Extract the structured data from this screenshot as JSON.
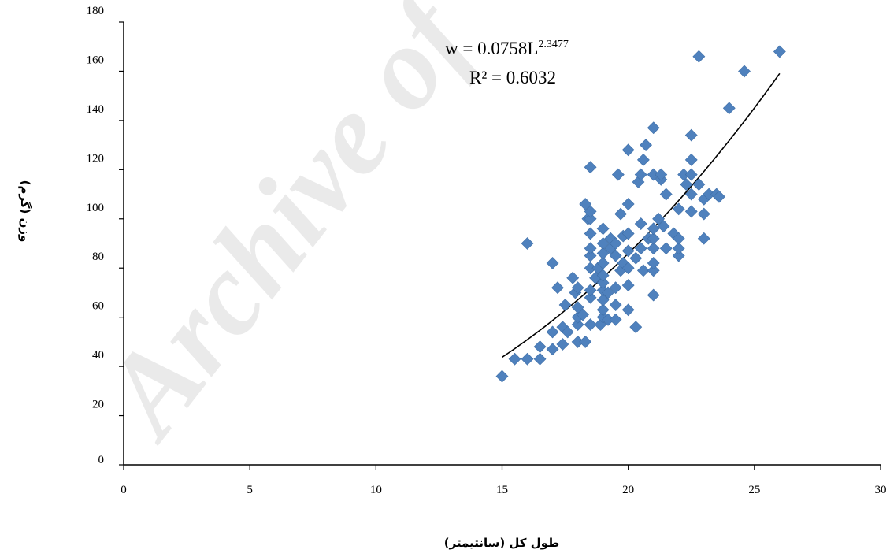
{
  "watermark": "Archive of",
  "chart_data": {
    "type": "scatter",
    "title": "",
    "xlabel": "طول کل (سانتیمتر)",
    "ylabel": "وزن (گرم)",
    "xlim": [
      0,
      30
    ],
    "ylim": [
      0,
      180
    ],
    "xticks": [
      0,
      5,
      10,
      15,
      20,
      25,
      30
    ],
    "yticks": [
      0,
      20,
      40,
      60,
      80,
      100,
      120,
      140,
      160,
      180
    ],
    "grid": false,
    "marker_color": "#4f81bd",
    "trendline_color": "#000000",
    "trendline": {
      "type": "power",
      "a": 0.0758,
      "b": 2.3477,
      "x_range": [
        15,
        26
      ],
      "equation_main": "w = 0.0758L",
      "equation_exponent": "2.3477",
      "r2_label": "R² = 0.6032"
    },
    "points": [
      [
        15,
        36
      ],
      [
        15.5,
        43
      ],
      [
        16,
        43
      ],
      [
        16,
        90
      ],
      [
        16.5,
        43
      ],
      [
        16.5,
        48
      ],
      [
        17,
        47
      ],
      [
        17,
        54
      ],
      [
        17,
        82
      ],
      [
        17.2,
        72
      ],
      [
        17.4,
        49
      ],
      [
        17.4,
        56
      ],
      [
        17.5,
        65
      ],
      [
        17.6,
        54
      ],
      [
        17.8,
        76
      ],
      [
        17.9,
        70
      ],
      [
        18,
        50
      ],
      [
        18,
        57
      ],
      [
        18,
        60
      ],
      [
        18,
        64
      ],
      [
        18,
        72
      ],
      [
        18.2,
        61
      ],
      [
        18.3,
        50
      ],
      [
        18.3,
        106
      ],
      [
        18.4,
        100
      ],
      [
        18.5,
        57
      ],
      [
        18.5,
        68
      ],
      [
        18.5,
        71
      ],
      [
        18.5,
        80
      ],
      [
        18.5,
        85
      ],
      [
        18.5,
        88
      ],
      [
        18.5,
        94
      ],
      [
        18.5,
        100
      ],
      [
        18.5,
        103
      ],
      [
        18.5,
        121
      ],
      [
        18.7,
        76
      ],
      [
        18.8,
        80
      ],
      [
        18.9,
        57
      ],
      [
        19,
        60
      ],
      [
        19,
        63
      ],
      [
        19,
        67
      ],
      [
        19,
        71
      ],
      [
        19,
        74
      ],
      [
        19,
        77
      ],
      [
        19,
        82
      ],
      [
        19,
        86
      ],
      [
        19,
        90
      ],
      [
        19,
        96
      ],
      [
        19.2,
        59
      ],
      [
        19.2,
        70
      ],
      [
        19.3,
        88
      ],
      [
        19.3,
        92
      ],
      [
        19.5,
        59
      ],
      [
        19.5,
        65
      ],
      [
        19.5,
        72
      ],
      [
        19.5,
        85
      ],
      [
        19.5,
        90
      ],
      [
        19.6,
        118
      ],
      [
        19.7,
        79
      ],
      [
        19.7,
        102
      ],
      [
        19.8,
        93
      ],
      [
        19.8,
        82
      ],
      [
        20,
        63
      ],
      [
        20,
        73
      ],
      [
        20,
        80
      ],
      [
        20,
        87
      ],
      [
        20,
        94
      ],
      [
        20,
        106
      ],
      [
        20,
        128
      ],
      [
        20.3,
        56
      ],
      [
        20.3,
        84
      ],
      [
        20.4,
        115
      ],
      [
        20.5,
        88
      ],
      [
        20.5,
        98
      ],
      [
        20.5,
        118
      ],
      [
        20.6,
        124
      ],
      [
        20.6,
        79
      ],
      [
        20.7,
        130
      ],
      [
        20.8,
        92
      ],
      [
        21,
        69
      ],
      [
        21,
        79
      ],
      [
        21,
        82
      ],
      [
        21,
        88
      ],
      [
        21,
        92
      ],
      [
        21,
        96
      ],
      [
        21,
        118
      ],
      [
        21,
        137
      ],
      [
        21.2,
        100
      ],
      [
        21.3,
        116
      ],
      [
        21.3,
        118
      ],
      [
        21.4,
        97
      ],
      [
        21.5,
        88
      ],
      [
        21.5,
        110
      ],
      [
        21.8,
        94
      ],
      [
        22,
        85
      ],
      [
        22,
        88
      ],
      [
        22,
        92
      ],
      [
        22,
        104
      ],
      [
        22.2,
        118
      ],
      [
        22.3,
        114
      ],
      [
        22.5,
        103
      ],
      [
        22.5,
        110
      ],
      [
        22.5,
        118
      ],
      [
        22.5,
        124
      ],
      [
        22.5,
        134
      ],
      [
        22.8,
        114
      ],
      [
        22.8,
        166
      ],
      [
        23,
        92
      ],
      [
        23,
        102
      ],
      [
        23,
        108
      ],
      [
        23.2,
        110
      ],
      [
        23.5,
        110
      ],
      [
        23.6,
        109
      ],
      [
        24,
        145
      ],
      [
        24.6,
        160
      ],
      [
        26,
        168
      ]
    ]
  }
}
